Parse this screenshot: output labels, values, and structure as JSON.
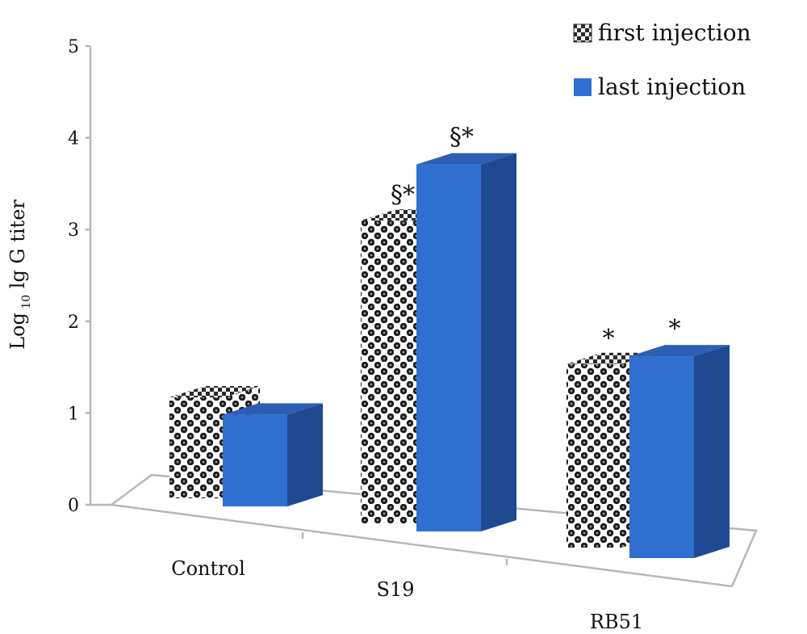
{
  "chart_data": {
    "type": "bar",
    "title": "",
    "xlabel": "",
    "ylabel": {
      "main": "Log",
      "sub": "10",
      "rest": " lg G titer"
    },
    "ylim": [
      0,
      5
    ],
    "yticks": [
      "0",
      "1",
      "2",
      "3",
      "4",
      "5"
    ],
    "categories": [
      "Control",
      "S19",
      "RB51"
    ],
    "series": [
      {
        "name": "first injection",
        "values": [
          1.1,
          3.3,
          2.0
        ],
        "annotations": [
          "",
          "§*",
          "*"
        ],
        "color": "#1a1a1a",
        "pattern": "checker"
      },
      {
        "name": "last injection",
        "values": [
          1.0,
          4.0,
          2.2
        ],
        "annotations": [
          "",
          "§*",
          "*"
        ],
        "color": "#2f6fd0"
      }
    ],
    "legend_position": "top-right",
    "grid": false,
    "style": "3d"
  }
}
